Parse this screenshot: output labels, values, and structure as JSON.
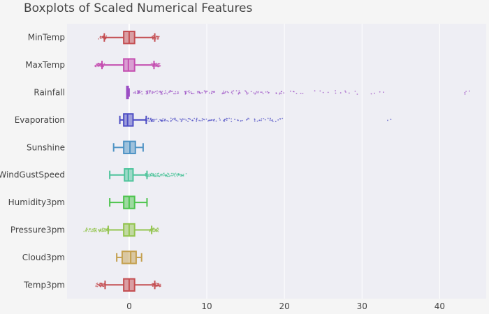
{
  "chart_data": {
    "type": "boxplot",
    "orientation": "horizontal",
    "title": "Boxplots of Scaled Numerical Features",
    "xlabel": "",
    "ylabel": "",
    "xlim": [
      -8,
      46
    ],
    "xticks": [
      0,
      10,
      20,
      30,
      40
    ],
    "grid": true,
    "series": [
      {
        "name": "MinTemp",
        "color": "#c44e52",
        "whisker_low": -3.2,
        "q1": -0.7,
        "median": 0.0,
        "q3": 0.7,
        "whisker_high": 3.3,
        "outliers_low": [
          -3.5,
          -3.4,
          -3.3
        ],
        "outliers_high": [
          3.4,
          3.5
        ]
      },
      {
        "name": "MaxTemp",
        "color": "#c44eb0",
        "whisker_low": -3.5,
        "q1": -0.7,
        "median": -0.1,
        "q3": 0.7,
        "whisker_high": 3.2,
        "outliers_low": [
          -4.0,
          -3.9,
          -3.8,
          -3.7,
          -3.6
        ],
        "outliers_high": [
          3.3,
          3.4,
          3.5,
          3.6
        ]
      },
      {
        "name": "Rainfall",
        "color": "#9b4ec4",
        "whisker_low": -0.3,
        "q1": -0.3,
        "median": -0.3,
        "q3": -0.2,
        "whisker_high": 0.0,
        "outliers_low": [],
        "outliers_high": [
          1,
          2,
          3,
          4,
          5,
          6,
          7,
          8,
          9,
          10,
          11,
          12,
          13,
          14,
          15,
          16,
          17,
          18,
          19,
          20,
          21,
          22,
          24.2,
          25.2,
          26.3,
          27.6,
          28.1,
          29,
          31.5,
          32.6,
          43.3,
          43.7
        ]
      },
      {
        "name": "Evaporation",
        "color": "#4e4ec4",
        "whisker_low": -1.2,
        "q1": -0.7,
        "median": -0.2,
        "q3": 0.5,
        "whisker_high": 2.2,
        "outliers_low": [],
        "outliers_high": [
          2.5,
          3,
          4,
          5,
          6,
          7,
          8,
          9,
          10,
          11,
          12,
          13,
          14,
          15,
          16.6,
          17.2,
          17.8,
          18.6,
          19.4,
          33.4
        ]
      },
      {
        "name": "Sunshine",
        "color": "#4e93c4",
        "whisker_low": -2.0,
        "q1": -0.7,
        "median": 0.1,
        "q3": 0.8,
        "whisker_high": 1.8,
        "outliers_low": [],
        "outliers_high": []
      },
      {
        "name": "WindGustSpeed",
        "color": "#4ec49b",
        "whisker_low": -2.5,
        "q1": -0.6,
        "median": -0.1,
        "q3": 0.5,
        "whisker_high": 2.3,
        "outliers_low": [],
        "outliers_high": [
          2.5,
          3,
          3.5,
          4,
          4.5,
          5,
          5.5,
          6,
          6.5,
          7.0
        ]
      },
      {
        "name": "Humidity3pm",
        "color": "#4ec44e",
        "whisker_low": -2.5,
        "q1": -0.7,
        "median": 0.0,
        "q3": 0.7,
        "whisker_high": 2.3,
        "outliers_low": [],
        "outliers_high": []
      },
      {
        "name": "Pressure3pm",
        "color": "#93c44e",
        "whisker_low": -2.7,
        "q1": -0.7,
        "median": 0.0,
        "q3": 0.7,
        "whisker_high": 2.9,
        "outliers_low": [
          -5.5,
          -5,
          -4.5,
          -4,
          -3.5,
          -3
        ],
        "outliers_high": [
          3.1,
          3.3,
          3.5
        ]
      },
      {
        "name": "Cloud3pm",
        "color": "#c4a04e",
        "whisker_low": -1.6,
        "q1": -0.9,
        "median": 0.2,
        "q3": 0.9,
        "whisker_high": 1.6,
        "outliers_low": [],
        "outliers_high": []
      },
      {
        "name": "Temp3pm",
        "color": "#c44e52",
        "whisker_low": -3.1,
        "q1": -0.7,
        "median": 0.0,
        "q3": 0.7,
        "whisker_high": 3.3,
        "outliers_low": [
          -3.9,
          -3.7,
          -3.5,
          -3.3
        ],
        "outliers_high": [
          3.4,
          3.5,
          3.6,
          3.7
        ]
      }
    ]
  }
}
